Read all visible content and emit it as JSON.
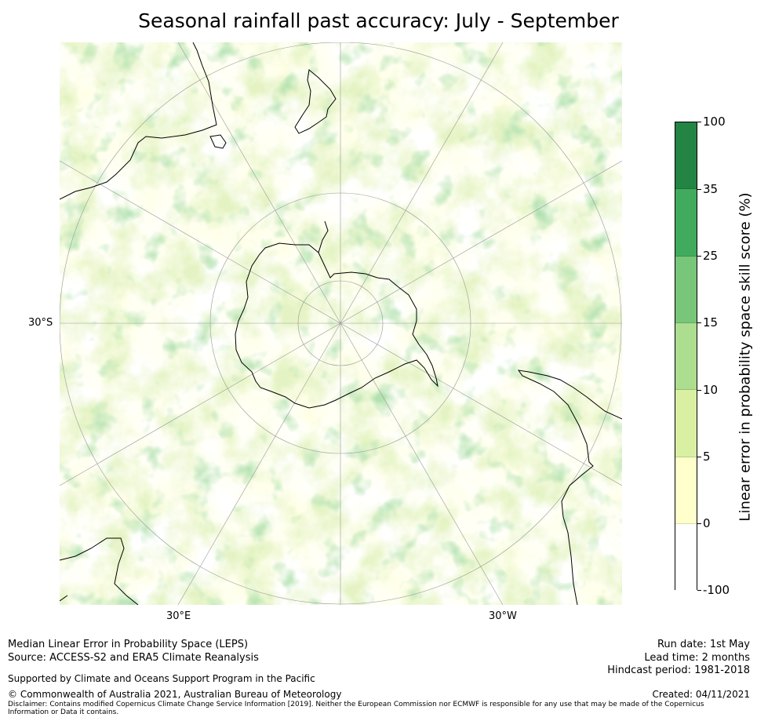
{
  "title": "Seasonal rainfall past accuracy: July - September",
  "map": {
    "lat_labels": [
      "30°S"
    ],
    "lon_labels": [
      "30°E",
      "30°W"
    ],
    "projection": "south-polar-stereographic"
  },
  "colorbar": {
    "label": "Linear error in probability space skill score (%)",
    "ticks": [
      "100",
      "35",
      "25",
      "15",
      "10",
      "5",
      "0",
      "-100"
    ],
    "bins": [
      {
        "range": "35 to 100",
        "color": "#238443"
      },
      {
        "range": "25 to 35",
        "color": "#41ab5d"
      },
      {
        "range": "15 to 25",
        "color": "#78c679"
      },
      {
        "range": "10 to 15",
        "color": "#addd8e"
      },
      {
        "range": "5 to 10",
        "color": "#d9f0a3"
      },
      {
        "range": "0 to 5",
        "color": "#ffffcc"
      },
      {
        "range": "-100 to 0",
        "color": "#ffffff"
      }
    ]
  },
  "footer": {
    "line1": "Median Linear Error in Probability Space (LEPS)",
    "line2": "Source: ACCESS-S2 and ERA5 Climate Reanalysis",
    "supported": "Supported by Climate and Oceans Support Program in the Pacific",
    "copyright": "© Commonwealth of Australia 2021, Australian Bureau of Meteorology",
    "disclaimer1": "Disclaimer: Contains modified Copernicus Climate Change Service Information [2019]. Neither the European Commission nor ECMWF is responsible for any use that may be made of the Copernicus",
    "disclaimer2": "Information or Data it contains.",
    "run_date": "Run date: 1st May",
    "lead_time": "Lead time: 2 months",
    "hindcast": "Hindcast period: 1981-2018",
    "created": "Created: 04/11/2021"
  }
}
